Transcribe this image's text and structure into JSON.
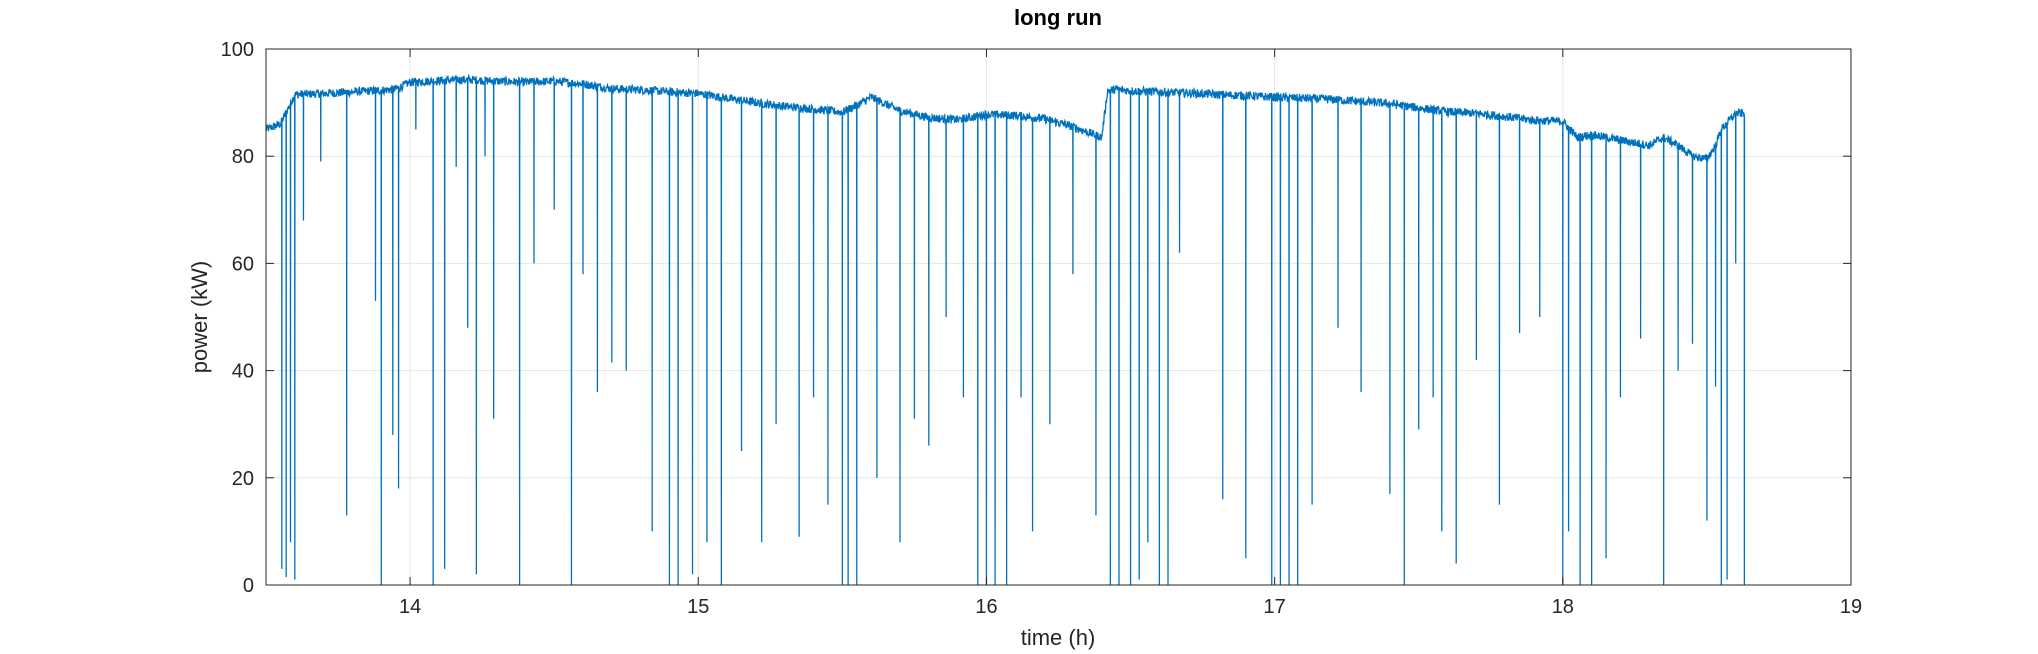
{
  "chart_data": {
    "type": "line",
    "title": "long run",
    "xlabel": "time (h)",
    "ylabel": "power (kW)",
    "xlim": [
      13.5,
      19
    ],
    "ylim": [
      0,
      100
    ],
    "xticks": [
      14,
      15,
      16,
      17,
      18,
      19
    ],
    "yticks": [
      0,
      20,
      40,
      60,
      80,
      100
    ],
    "grid": true,
    "line_color": "#0072bd",
    "series": [
      {
        "baseline": {
          "x": [
            13.5,
            13.55,
            13.6,
            13.7,
            13.8,
            13.9,
            13.95,
            14.0,
            14.1,
            14.2,
            14.3,
            14.4,
            14.5,
            14.6,
            14.7,
            14.8,
            14.9,
            15.0,
            15.1,
            15.2,
            15.3,
            15.4,
            15.5,
            15.55,
            15.6,
            15.7,
            15.8,
            15.9,
            16.0,
            16.1,
            16.2,
            16.3,
            16.4,
            16.42,
            16.45,
            16.5,
            16.6,
            16.7,
            16.8,
            16.9,
            17.0,
            17.1,
            17.2,
            17.3,
            17.4,
            17.5,
            17.6,
            17.7,
            17.8,
            17.9,
            18.0,
            18.05,
            18.1,
            18.2,
            18.3,
            18.35,
            18.4,
            18.45,
            18.5,
            18.53,
            18.55,
            18.6,
            18.63
          ],
          "y": [
            85,
            86,
            91.5,
            91.7,
            92,
            92.3,
            92.5,
            93.8,
            94.1,
            94.3,
            94,
            93.8,
            94,
            93.5,
            92.6,
            92.4,
            92,
            91.7,
            90.8,
            90,
            89.3,
            88.8,
            88.2,
            89.5,
            91,
            88.5,
            87.2,
            86.8,
            87.8,
            87.6,
            87,
            85.5,
            83.5,
            92.2,
            92.5,
            92.2,
            92,
            91.8,
            91.5,
            91.3,
            91,
            90.8,
            90.6,
            90.2,
            89.8,
            89,
            88.3,
            88,
            87.4,
            86.7,
            86.5,
            83.5,
            84,
            83,
            82,
            83.5,
            82,
            80,
            79.5,
            82,
            85,
            88,
            88
          ]
        },
        "drops": [
          {
            "x": 13.555,
            "y": 3
          },
          {
            "x": 13.57,
            "y": 1.5
          },
          {
            "x": 13.585,
            "y": 8
          },
          {
            "x": 13.6,
            "y": 1
          },
          {
            "x": 13.63,
            "y": 68
          },
          {
            "x": 13.69,
            "y": 79
          },
          {
            "x": 13.78,
            "y": 13
          },
          {
            "x": 13.88,
            "y": 53
          },
          {
            "x": 13.9,
            "y": 0
          },
          {
            "x": 13.94,
            "y": 28
          },
          {
            "x": 13.96,
            "y": 18
          },
          {
            "x": 14.02,
            "y": 85
          },
          {
            "x": 14.08,
            "y": 0
          },
          {
            "x": 14.12,
            "y": 3
          },
          {
            "x": 14.16,
            "y": 78
          },
          {
            "x": 14.2,
            "y": 48
          },
          {
            "x": 14.23,
            "y": 2
          },
          {
            "x": 14.26,
            "y": 80
          },
          {
            "x": 14.29,
            "y": 31
          },
          {
            "x": 14.38,
            "y": 0
          },
          {
            "x": 14.43,
            "y": 60
          },
          {
            "x": 14.5,
            "y": 70
          },
          {
            "x": 14.56,
            "y": 0
          },
          {
            "x": 14.6,
            "y": 58
          },
          {
            "x": 14.65,
            "y": 36
          },
          {
            "x": 14.7,
            "y": 41.5
          },
          {
            "x": 14.75,
            "y": 40
          },
          {
            "x": 14.84,
            "y": 10
          },
          {
            "x": 14.9,
            "y": 0
          },
          {
            "x": 14.93,
            "y": 0
          },
          {
            "x": 14.98,
            "y": 2
          },
          {
            "x": 15.03,
            "y": 8
          },
          {
            "x": 15.08,
            "y": 0
          },
          {
            "x": 15.15,
            "y": 25
          },
          {
            "x": 15.22,
            "y": 8
          },
          {
            "x": 15.27,
            "y": 30
          },
          {
            "x": 15.35,
            "y": 9
          },
          {
            "x": 15.4,
            "y": 35
          },
          {
            "x": 15.45,
            "y": 15
          },
          {
            "x": 15.5,
            "y": 0
          },
          {
            "x": 15.52,
            "y": 0
          },
          {
            "x": 15.55,
            "y": 0
          },
          {
            "x": 15.62,
            "y": 20
          },
          {
            "x": 15.7,
            "y": 8
          },
          {
            "x": 15.75,
            "y": 31
          },
          {
            "x": 15.8,
            "y": 26
          },
          {
            "x": 15.86,
            "y": 50
          },
          {
            "x": 15.92,
            "y": 35
          },
          {
            "x": 15.97,
            "y": 0
          },
          {
            "x": 16.0,
            "y": 0
          },
          {
            "x": 16.03,
            "y": 0
          },
          {
            "x": 16.07,
            "y": 0
          },
          {
            "x": 16.12,
            "y": 35
          },
          {
            "x": 16.16,
            "y": 10
          },
          {
            "x": 16.22,
            "y": 30
          },
          {
            "x": 16.3,
            "y": 58
          },
          {
            "x": 16.38,
            "y": 13
          },
          {
            "x": 16.43,
            "y": 0
          },
          {
            "x": 16.46,
            "y": 0
          },
          {
            "x": 16.5,
            "y": 0
          },
          {
            "x": 16.53,
            "y": 1
          },
          {
            "x": 16.56,
            "y": 8
          },
          {
            "x": 16.6,
            "y": 0
          },
          {
            "x": 16.63,
            "y": 0
          },
          {
            "x": 16.67,
            "y": 62
          },
          {
            "x": 16.82,
            "y": 16
          },
          {
            "x": 16.9,
            "y": 5
          },
          {
            "x": 16.99,
            "y": 0
          },
          {
            "x": 17.02,
            "y": 0
          },
          {
            "x": 17.05,
            "y": 0
          },
          {
            "x": 17.08,
            "y": 0
          },
          {
            "x": 17.13,
            "y": 15
          },
          {
            "x": 17.22,
            "y": 48
          },
          {
            "x": 17.3,
            "y": 36
          },
          {
            "x": 17.4,
            "y": 17
          },
          {
            "x": 17.45,
            "y": 0
          },
          {
            "x": 17.5,
            "y": 29
          },
          {
            "x": 17.55,
            "y": 35
          },
          {
            "x": 17.58,
            "y": 10
          },
          {
            "x": 17.63,
            "y": 4
          },
          {
            "x": 17.7,
            "y": 42
          },
          {
            "x": 17.78,
            "y": 15
          },
          {
            "x": 17.85,
            "y": 47
          },
          {
            "x": 17.92,
            "y": 50
          },
          {
            "x": 18.0,
            "y": 0
          },
          {
            "x": 18.02,
            "y": 10
          },
          {
            "x": 18.06,
            "y": 0
          },
          {
            "x": 18.1,
            "y": 0
          },
          {
            "x": 18.15,
            "y": 5
          },
          {
            "x": 18.2,
            "y": 35
          },
          {
            "x": 18.27,
            "y": 46
          },
          {
            "x": 18.35,
            "y": 0
          },
          {
            "x": 18.4,
            "y": 40
          },
          {
            "x": 18.45,
            "y": 45
          },
          {
            "x": 18.5,
            "y": 12
          },
          {
            "x": 18.53,
            "y": 37
          },
          {
            "x": 18.55,
            "y": 0
          },
          {
            "x": 18.57,
            "y": 1
          },
          {
            "x": 18.6,
            "y": 60
          },
          {
            "x": 18.63,
            "y": 0
          }
        ]
      }
    ]
  }
}
